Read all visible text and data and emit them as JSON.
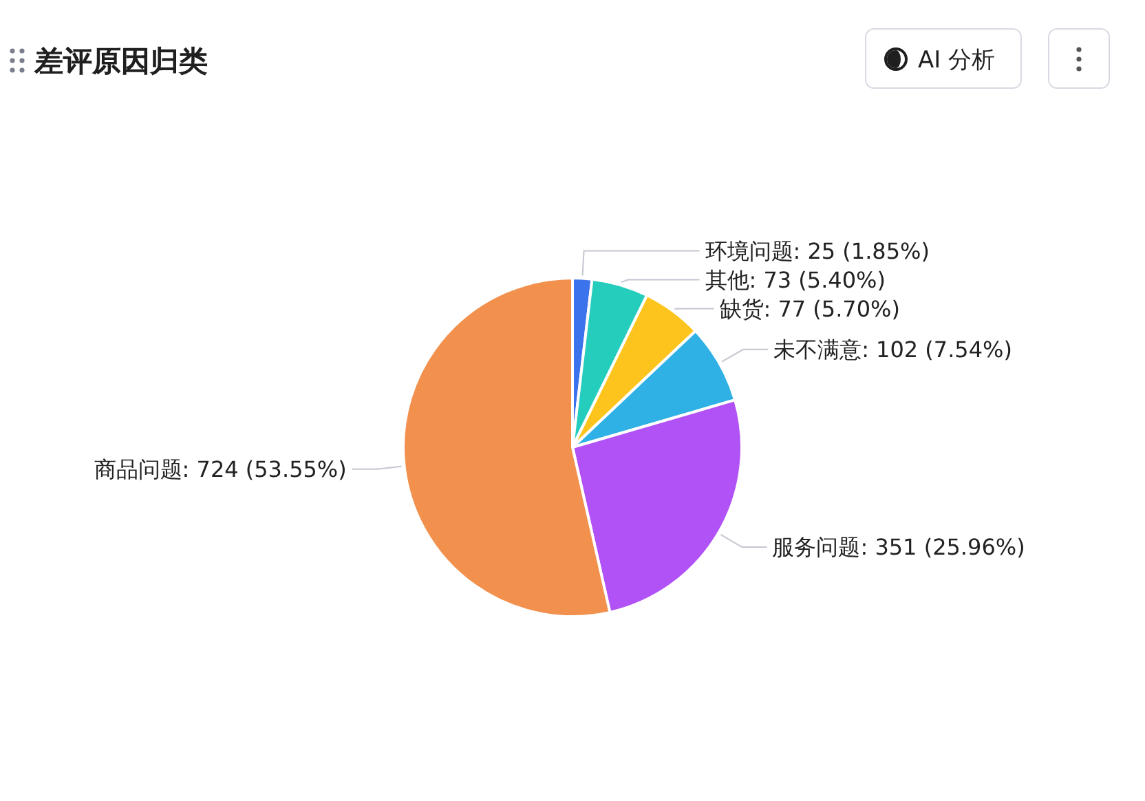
{
  "chart_data": {
    "type": "pie",
    "title": "差评原因归类",
    "categories": [
      "环境问题",
      "其他",
      "缺货",
      "未不满意",
      "服务问题",
      "商品问题"
    ],
    "values": [
      25,
      73,
      77,
      102,
      351,
      724
    ],
    "colors": [
      "#3b73ec",
      "#25cdbd",
      "#fcc41c",
      "#2fb1e5",
      "#b152f6",
      "#f2914d"
    ],
    "value_labels": [
      "25 (1.85%)",
      "73 (5.40%)",
      "77 (5.70%)",
      "102 (7.54%)",
      "351 (25.96%)",
      "724 (53.55%)"
    ],
    "annotations": [
      "AI 分析"
    ]
  }
}
